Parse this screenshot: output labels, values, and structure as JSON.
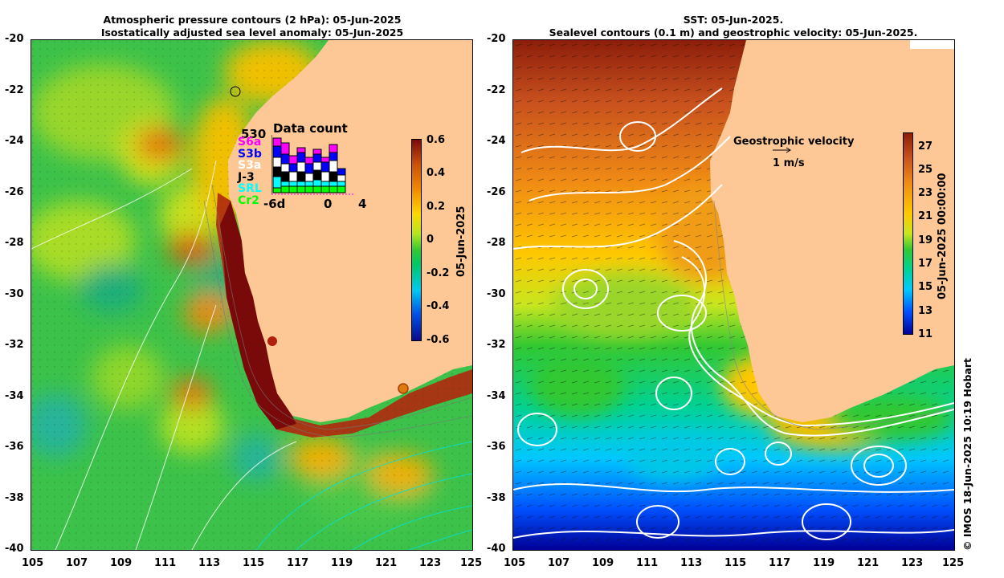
{
  "left_panel": {
    "title_line1": "Atmospheric pressure contours (2 hPa): 05-Jun-2025",
    "title_line2": "Isostatically adjusted sea level anomaly: 05-Jun-2025",
    "colorbar": {
      "ticks": [
        "0.6",
        "0.4",
        "0.2",
        "0",
        "-0.2",
        "-0.4",
        "-0.6"
      ],
      "label": "05-Jun-2025",
      "range": [
        -0.6,
        0.6
      ]
    },
    "data_count": {
      "title": "Data count",
      "max_value": "530",
      "legend": [
        {
          "name": "S6a",
          "color": "#ff00ff"
        },
        {
          "name": "S3b",
          "color": "#0000ff"
        },
        {
          "name": "S3a",
          "color": "#ffffff"
        },
        {
          "name": "J-3",
          "color": "#000000"
        },
        {
          "name": "SRL",
          "color": "#00ffff"
        },
        {
          "name": "Cr2",
          "color": "#00ff00"
        }
      ],
      "x_ticks": [
        "-6d",
        "0",
        "4"
      ]
    }
  },
  "right_panel": {
    "title_line1": "SST: 05-Jun-2025.",
    "title_line2": "Sealevel contours (0.1 m) and geostrophic velocity: 05-Jun-2025.",
    "velocity_legend": {
      "title": "Geostrophic velocity",
      "scale": "1 m/s"
    },
    "colorbar": {
      "ticks": [
        "27",
        "25",
        "23",
        "21",
        "19",
        "17",
        "15",
        "13",
        "11"
      ],
      "label": "05-Jun-2025 00:00:00",
      "range": [
        11,
        28
      ]
    }
  },
  "axes": {
    "lat_ticks": [
      "-20",
      "-22",
      "-24",
      "-26",
      "-28",
      "-30",
      "-32",
      "-34",
      "-36",
      "-38",
      "-40"
    ],
    "lon_ticks": [
      "105",
      "107",
      "109",
      "111",
      "113",
      "115",
      "117",
      "119",
      "121",
      "123",
      "125"
    ]
  },
  "credit": "© IMOS 18-Jun-2025 10:19 Hobart",
  "colors": {
    "land": "#fdc896",
    "sla_ramp": [
      "#0a0a8c",
      "#0050e6",
      "#00c8f0",
      "#00c864",
      "#32c832",
      "#b4e61e",
      "#ffd700",
      "#f08c00",
      "#c8500a",
      "#7a0a0a"
    ],
    "sst_ramp": [
      "#000096",
      "#0050ff",
      "#00c8ff",
      "#00d296",
      "#32c832",
      "#c8e61e",
      "#ffc800",
      "#f08c14",
      "#c8501e",
      "#8c1e0a"
    ]
  }
}
